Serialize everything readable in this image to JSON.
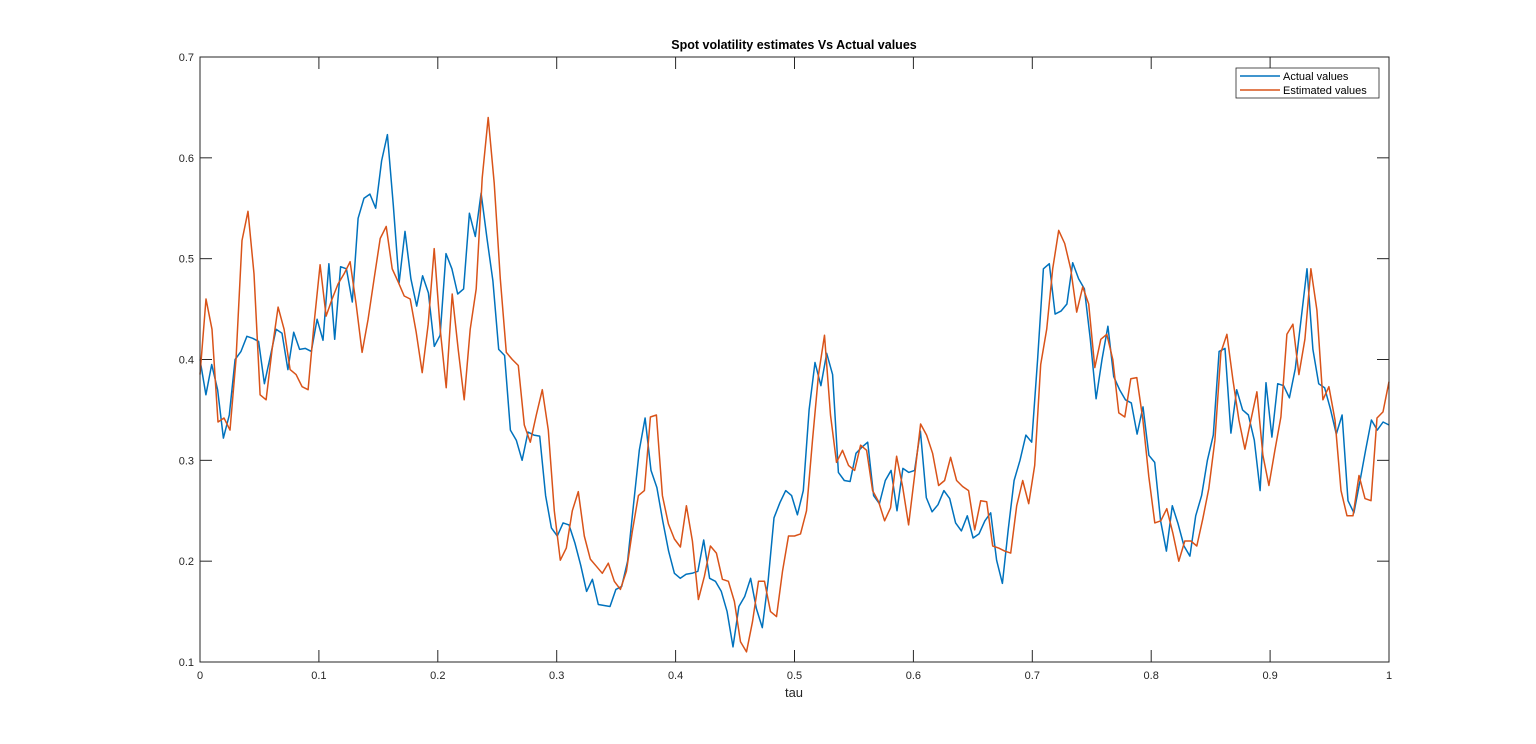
{
  "chart_data": {
    "type": "line",
    "title": "Spot volatility estimates Vs Actual values",
    "xlabel": "tau",
    "ylabel": "",
    "xlim": [
      0,
      1
    ],
    "ylim": [
      0.1,
      0.7
    ],
    "xticks": [
      "0",
      "0.1",
      "0.2",
      "0.3",
      "0.4",
      "0.5",
      "0.6",
      "0.7",
      "0.8",
      "0.9",
      "1"
    ],
    "yticks": [
      "0.1",
      "0.2",
      "0.3",
      "0.4",
      "0.5",
      "0.6",
      "0.7"
    ],
    "grid": false,
    "legend_position": "northeast",
    "x_step": 0.005,
    "series": [
      {
        "name": "Actual values",
        "color": "#0072BD",
        "values": [
          0.4,
          0.365,
          0.395,
          0.37,
          0.322,
          0.345,
          0.4,
          0.408,
          0.423,
          0.421,
          0.418,
          0.376,
          0.403,
          0.43,
          0.426,
          0.39,
          0.427,
          0.41,
          0.411,
          0.408,
          0.44,
          0.419,
          0.495,
          0.42,
          0.492,
          0.49,
          0.457,
          0.54,
          0.56,
          0.564,
          0.55,
          0.597,
          0.623,
          0.553,
          0.476,
          0.527,
          0.48,
          0.453,
          0.483,
          0.466,
          0.413,
          0.424,
          0.505,
          0.49,
          0.465,
          0.47,
          0.545,
          0.522,
          0.565,
          0.52,
          0.478,
          0.41,
          0.404,
          0.33,
          0.32,
          0.3,
          0.328,
          0.325,
          0.324,
          0.265,
          0.233,
          0.225,
          0.238,
          0.236,
          0.218,
          0.196,
          0.17,
          0.182,
          0.157,
          0.156,
          0.155,
          0.172,
          0.175,
          0.2,
          0.255,
          0.31,
          0.342,
          0.29,
          0.273,
          0.24,
          0.21,
          0.188,
          0.183,
          0.187,
          0.188,
          0.19,
          0.221,
          0.183,
          0.18,
          0.17,
          0.15,
          0.115,
          0.155,
          0.165,
          0.183,
          0.153,
          0.134,
          0.18,
          0.243,
          0.258,
          0.27,
          0.265,
          0.246,
          0.27,
          0.35,
          0.397,
          0.374,
          0.406,
          0.385,
          0.288,
          0.28,
          0.279,
          0.307,
          0.313,
          0.318,
          0.265,
          0.257,
          0.28,
          0.29,
          0.25,
          0.292,
          0.288,
          0.29,
          0.329,
          0.263,
          0.249,
          0.256,
          0.27,
          0.262,
          0.238,
          0.23,
          0.245,
          0.223,
          0.227,
          0.24,
          0.248,
          0.201,
          0.178,
          0.232,
          0.28,
          0.3,
          0.325,
          0.318,
          0.4,
          0.49,
          0.495,
          0.445,
          0.448,
          0.455,
          0.496,
          0.48,
          0.47,
          0.42,
          0.361,
          0.4,
          0.433,
          0.383,
          0.37,
          0.36,
          0.357,
          0.326,
          0.353,
          0.305,
          0.298,
          0.24,
          0.21,
          0.255,
          0.237,
          0.215,
          0.205,
          0.245,
          0.265,
          0.3,
          0.325,
          0.408,
          0.411,
          0.327,
          0.37,
          0.35,
          0.345,
          0.32,
          0.27,
          0.377,
          0.323,
          0.376,
          0.374,
          0.362,
          0.391,
          0.44,
          0.49,
          0.41,
          0.376,
          0.372,
          0.351,
          0.326,
          0.345,
          0.26,
          0.248,
          0.278,
          0.31,
          0.34,
          0.33,
          0.338,
          0.335
        ]
      },
      {
        "name": "Estimated values",
        "color": "#D95319",
        "values": [
          0.385,
          0.46,
          0.43,
          0.338,
          0.342,
          0.33,
          0.4,
          0.518,
          0.547,
          0.485,
          0.365,
          0.36,
          0.41,
          0.452,
          0.43,
          0.39,
          0.385,
          0.373,
          0.37,
          0.436,
          0.494,
          0.443,
          0.46,
          0.475,
          0.485,
          0.497,
          0.455,
          0.407,
          0.44,
          0.48,
          0.52,
          0.532,
          0.49,
          0.477,
          0.463,
          0.46,
          0.427,
          0.387,
          0.435,
          0.51,
          0.43,
          0.372,
          0.465,
          0.41,
          0.36,
          0.43,
          0.47,
          0.58,
          0.64,
          0.575,
          0.48,
          0.407,
          0.4,
          0.394,
          0.335,
          0.318,
          0.345,
          0.37,
          0.33,
          0.25,
          0.201,
          0.213,
          0.25,
          0.269,
          0.225,
          0.202,
          0.195,
          0.188,
          0.198,
          0.18,
          0.172,
          0.19,
          0.23,
          0.265,
          0.27,
          0.343,
          0.345,
          0.265,
          0.237,
          0.222,
          0.214,
          0.255,
          0.22,
          0.162,
          0.185,
          0.215,
          0.208,
          0.182,
          0.18,
          0.16,
          0.12,
          0.11,
          0.14,
          0.18,
          0.18,
          0.15,
          0.145,
          0.19,
          0.225,
          0.225,
          0.227,
          0.25,
          0.32,
          0.385,
          0.424,
          0.345,
          0.298,
          0.31,
          0.295,
          0.29,
          0.315,
          0.31,
          0.27,
          0.259,
          0.24,
          0.253,
          0.304,
          0.274,
          0.236,
          0.285,
          0.336,
          0.325,
          0.307,
          0.275,
          0.28,
          0.303,
          0.28,
          0.274,
          0.27,
          0.231,
          0.26,
          0.259,
          0.215,
          0.213,
          0.21,
          0.208,
          0.255,
          0.28,
          0.257,
          0.295,
          0.395,
          0.43,
          0.49,
          0.528,
          0.515,
          0.49,
          0.447,
          0.472,
          0.455,
          0.392,
          0.42,
          0.425,
          0.4,
          0.347,
          0.343,
          0.381,
          0.382,
          0.341,
          0.284,
          0.238,
          0.24,
          0.252,
          0.228,
          0.2,
          0.22,
          0.22,
          0.215,
          0.242,
          0.272,
          0.32,
          0.407,
          0.425,
          0.38,
          0.34,
          0.311,
          0.34,
          0.368,
          0.305,
          0.275,
          0.31,
          0.343,
          0.425,
          0.435,
          0.385,
          0.42,
          0.49,
          0.449,
          0.36,
          0.373,
          0.34,
          0.27,
          0.245,
          0.245,
          0.285,
          0.262,
          0.26,
          0.342,
          0.348,
          0.378
        ]
      }
    ]
  },
  "legend": {
    "items": [
      {
        "label": "Actual values",
        "color": "#0072BD"
      },
      {
        "label": "Estimated values",
        "color": "#D95319"
      }
    ]
  }
}
